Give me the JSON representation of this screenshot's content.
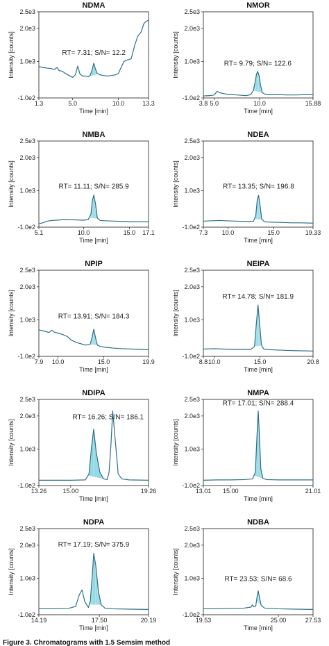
{
  "figure": {
    "caption": "Figure 3. Chromatograms with 1.5 Semsim method"
  },
  "style": {
    "trace_color": "#2e6f86",
    "fill_color": "#7fd0df",
    "axis_color": "#333333"
  },
  "chart_data": [
    {
      "type": "line",
      "title": "NDMA",
      "xlabel": "Time [min]",
      "ylabel": "Intensity [counts]",
      "xlim": [
        1.3,
        13.3
      ],
      "xticks": [
        "1.3",
        "5.0",
        "10.0",
        "13.3"
      ],
      "xtick_values": [
        1.3,
        5.0,
        10.0,
        13.3
      ],
      "ylim": [
        -100,
        2500
      ],
      "yticks": [
        "2.5e3",
        "2.0e3",
        "1.0e3",
        "-1.0e2"
      ],
      "ytick_values": [
        2500,
        2000,
        1000,
        -100
      ],
      "annotation": "RT= 7.31; S/N= 12.2",
      "annotation_x": 7.31,
      "annotation_y": 1200,
      "series": [
        {
          "x": [
            1.3,
            1.7,
            2.2,
            2.6,
            3.0,
            3.3,
            3.5,
            3.9,
            4.2,
            4.6,
            5.0,
            5.3,
            5.55,
            5.8,
            6.1,
            6.4,
            6.7,
            6.9,
            7.1,
            7.31,
            7.5,
            7.7,
            7.95,
            8.3,
            8.8,
            9.3,
            9.7,
            10.0,
            10.3,
            10.6,
            11.0,
            11.4,
            11.8,
            12.1,
            12.5,
            12.8,
            13.0,
            13.3
          ],
          "y": [
            850,
            820,
            800,
            790,
            760,
            820,
            730,
            700,
            640,
            580,
            520,
            600,
            860,
            620,
            560,
            560,
            540,
            580,
            720,
            950,
            760,
            640,
            600,
            580,
            560,
            580,
            600,
            640,
            820,
            1000,
            1050,
            1080,
            1500,
            1750,
            1900,
            2150,
            2200,
            2250
          ]
        }
      ],
      "peak_shade": [
        6.7,
        7.8
      ]
    },
    {
      "type": "line",
      "title": "NMOR",
      "xlabel": "Time [min]",
      "ylabel": "Intensity [counts]",
      "xlim": [
        3.8,
        15.88
      ],
      "xticks": [
        "3.8",
        "5.0",
        "10.0",
        "15.88"
      ],
      "xtick_values": [
        3.8,
        5.0,
        10.0,
        15.88
      ],
      "ylim": [
        -100,
        2500
      ],
      "yticks": [
        "2.5e3",
        "2.0e3",
        "1.0e3",
        "-1.0e2"
      ],
      "ytick_values": [
        2500,
        2000,
        1000,
        -100
      ],
      "annotation": "RT= 9.79; S/N= 122.6",
      "annotation_x": 9.79,
      "annotation_y": 880,
      "series": [
        {
          "x": [
            3.8,
            4.5,
            5.0,
            5.3,
            5.6,
            6.0,
            6.5,
            7.0,
            7.5,
            8.0,
            8.5,
            9.0,
            9.3,
            9.5,
            9.65,
            9.79,
            9.95,
            10.1,
            10.3,
            10.6,
            11.0,
            12.0,
            13.0,
            14.0,
            15.0,
            15.88
          ],
          "y": [
            -40,
            -30,
            -10,
            100,
            60,
            30,
            10,
            0,
            -10,
            -20,
            -30,
            0,
            120,
            380,
            620,
            700,
            560,
            280,
            60,
            10,
            0,
            0,
            -10,
            -10,
            0,
            0
          ]
        }
      ],
      "peak_shade": [
        9.3,
        10.3
      ]
    },
    {
      "type": "line",
      "title": "NMBA",
      "xlabel": "Time [min]",
      "ylabel": "Intensity [counts]",
      "xlim": [
        5.1,
        17.1
      ],
      "xticks": [
        "5.1",
        "10.0",
        "15.0",
        "17.1"
      ],
      "xtick_values": [
        5.1,
        10.0,
        15.0,
        17.1
      ],
      "ylim": [
        -100,
        2500
      ],
      "yticks": [
        "2.5e3",
        "2.0e3",
        "1.0e3",
        "-1.0e2"
      ],
      "ytick_values": [
        2500,
        2000,
        1000,
        -100
      ],
      "annotation": "RT= 11.11; S/N= 285.9",
      "annotation_x": 11.11,
      "annotation_y": 1060,
      "series": [
        {
          "x": [
            5.1,
            5.5,
            6.0,
            6.5,
            7.0,
            8.0,
            9.0,
            10.0,
            10.5,
            10.8,
            10.95,
            11.11,
            11.3,
            11.5,
            11.8,
            12.5,
            13.5,
            14.5,
            15.5,
            16.5,
            17.1
          ],
          "y": [
            0,
            30,
            80,
            100,
            110,
            130,
            120,
            110,
            130,
            300,
            700,
            870,
            600,
            180,
            100,
            90,
            80,
            70,
            60,
            60,
            60
          ]
        }
      ],
      "peak_shade": [
        10.6,
        11.6
      ]
    },
    {
      "type": "line",
      "title": "NDEA",
      "xlabel": "Time [min]",
      "ylabel": "Intensity [counts]",
      "xlim": [
        7.3,
        19.33
      ],
      "xticks": [
        "7.3",
        "10.0",
        "15.0",
        "19.33"
      ],
      "xtick_values": [
        7.3,
        10.0,
        15.0,
        19.33
      ],
      "ylim": [
        -100,
        2500
      ],
      "yticks": [
        "2.5e3",
        "2.0e3",
        "1.0e3",
        "-1.0e2"
      ],
      "ytick_values": [
        2500,
        2000,
        1000,
        -100
      ],
      "annotation": "RT= 13.35; S/N= 196.8",
      "annotation_x": 13.35,
      "annotation_y": 1060,
      "series": [
        {
          "x": [
            7.3,
            8.0,
            9.0,
            10.0,
            11.0,
            12.0,
            12.8,
            13.05,
            13.2,
            13.35,
            13.5,
            13.7,
            14.0,
            15.0,
            16.0,
            17.0,
            18.0,
            19.33
          ],
          "y": [
            80,
            90,
            100,
            90,
            80,
            70,
            80,
            250,
            700,
            860,
            600,
            150,
            60,
            50,
            40,
            30,
            30,
            20
          ]
        }
      ],
      "peak_shade": [
        12.9,
        13.8
      ]
    },
    {
      "type": "line",
      "title": "NPIP",
      "xlabel": "Time [min]",
      "ylabel": "Intensity [counts]",
      "xlim": [
        7.9,
        19.9
      ],
      "xticks": [
        "7.9",
        "10.0",
        "15.0",
        "19.9"
      ],
      "xtick_values": [
        7.9,
        10.0,
        15.0,
        19.9
      ],
      "ylim": [
        -100,
        2500
      ],
      "yticks": [
        "2.5e3",
        "2.0e3",
        "1.0e3",
        "-1.0e2"
      ],
      "ytick_values": [
        2500,
        2000,
        1000,
        -100
      ],
      "annotation": "RT= 13.91; S/N= 184.3",
      "annotation_x": 13.91,
      "annotation_y": 1040,
      "series": [
        {
          "x": [
            7.9,
            8.5,
            9.0,
            9.3,
            9.6,
            10.0,
            10.5,
            11.0,
            11.5,
            12.0,
            12.5,
            13.0,
            13.5,
            13.7,
            13.91,
            14.1,
            14.3,
            14.6,
            15.0,
            16.0,
            17.0,
            18.0,
            19.0,
            19.9
          ],
          "y": [
            700,
            660,
            620,
            690,
            630,
            600,
            560,
            500,
            380,
            320,
            280,
            240,
            260,
            450,
            720,
            460,
            240,
            200,
            180,
            150,
            130,
            120,
            110,
            100
          ]
        }
      ],
      "peak_shade": [
        13.5,
        14.3
      ]
    },
    {
      "type": "line",
      "title": "NEIPA",
      "xlabel": "Time [min]",
      "ylabel": "Intensity [counts]",
      "xlim": [
        8.8,
        20.8
      ],
      "xticks": [
        "8.8",
        "10.0",
        "15.0",
        "20.8"
      ],
      "xtick_values": [
        8.8,
        10.0,
        15.0,
        20.8
      ],
      "ylim": [
        -100,
        2500
      ],
      "yticks": [
        "2.5e3",
        "2.0e3",
        "1.0e3",
        "-1.0e2"
      ],
      "ytick_values": [
        2500,
        2000,
        1000,
        -100
      ],
      "annotation": "RT= 14.78; S/N= 181.9",
      "annotation_x": 14.78,
      "annotation_y": 1640,
      "series": [
        {
          "x": [
            8.8,
            10.0,
            11.0,
            12.0,
            13.0,
            14.0,
            14.4,
            14.6,
            14.78,
            14.95,
            15.15,
            15.4,
            16.0,
            17.0,
            18.0,
            19.0,
            20.8
          ],
          "y": [
            120,
            130,
            120,
            110,
            110,
            110,
            200,
            900,
            1450,
            900,
            250,
            120,
            100,
            90,
            80,
            70,
            60
          ]
        }
      ],
      "peak_shade": [
        14.4,
        15.2
      ]
    },
    {
      "type": "line",
      "title": "NDIPA",
      "xlabel": "Time [min]",
      "ylabel": "Intensity [counts]",
      "xlim": [
        13.26,
        19.26
      ],
      "xticks": [
        "13.26",
        "15.00",
        "19.26"
      ],
      "xtick_values": [
        13.26,
        15.0,
        19.26
      ],
      "ylim": [
        -100,
        2500
      ],
      "yticks": [
        "2.5e3",
        "2.0e3",
        "1.0e3",
        "-1.0e2"
      ],
      "ytick_values": [
        2500,
        2000,
        1000,
        -100
      ],
      "annotation": "RT= 16.26; S/N= 186.1",
      "annotation_x": 15.1,
      "annotation_y": 1900,
      "series": [
        {
          "x": [
            13.26,
            14.0,
            15.0,
            15.8,
            16.0,
            16.15,
            16.26,
            16.4,
            16.6,
            16.8,
            17.0,
            17.1,
            17.2,
            17.3,
            17.45,
            17.6,
            17.8,
            18.2,
            19.26
          ],
          "y": [
            60,
            60,
            60,
            70,
            250,
            1100,
            1600,
            900,
            300,
            100,
            80,
            300,
            1100,
            2150,
            1200,
            250,
            100,
            70,
            60
          ]
        }
      ],
      "peak_shade": [
        15.95,
        16.9
      ]
    },
    {
      "type": "line",
      "title": "NMPA",
      "xlabel": "Time [min]",
      "ylabel": "Intensity [counts]",
      "xlim": [
        13.01,
        21.01
      ],
      "xticks": [
        "13.01",
        "15.00",
        "21.01"
      ],
      "xtick_values": [
        13.01,
        15.0,
        21.01
      ],
      "ylim": [
        -100,
        2500
      ],
      "yticks": [
        "2.5e3",
        "2.0e3",
        "1.0e3",
        "-1.0e2"
      ],
      "ytick_values": [
        2500,
        2000,
        1000,
        -100
      ],
      "annotation": "RT= 17.01; S/N= 288.4",
      "annotation_x": 17.01,
      "annotation_y": 2320,
      "series": [
        {
          "x": [
            13.01,
            14.0,
            15.0,
            16.0,
            16.6,
            16.8,
            16.92,
            17.01,
            17.1,
            17.2,
            17.35,
            17.6,
            18.5,
            19.5,
            21.01
          ],
          "y": [
            60,
            70,
            70,
            80,
            100,
            300,
            1400,
            2150,
            1400,
            400,
            120,
            80,
            70,
            70,
            70
          ]
        }
      ],
      "peak_shade": [
        16.7,
        17.5
      ]
    },
    {
      "type": "line",
      "title": "NDPA",
      "xlabel": "Time [min]",
      "ylabel": "Intensity [counts]",
      "xlim": [
        14.19,
        20.19
      ],
      "xticks": [
        "14.19",
        "17.50",
        "20.19"
      ],
      "xtick_values": [
        14.19,
        17.5,
        20.19
      ],
      "ylim": [
        -100,
        2500
      ],
      "yticks": [
        "2.5e3",
        "2.0e3",
        "1.0e3",
        "-1.0e2"
      ],
      "ytick_values": [
        2500,
        2000,
        1000,
        -100
      ],
      "annotation": "RT= 17.19; S/N= 375.9",
      "annotation_x": 17.19,
      "annotation_y": 1950,
      "series": [
        {
          "x": [
            14.19,
            15.0,
            15.8,
            16.2,
            16.4,
            16.55,
            16.7,
            16.9,
            17.0,
            17.1,
            17.19,
            17.3,
            17.45,
            17.6,
            17.8,
            18.2,
            19.0,
            20.19
          ],
          "y": [
            80,
            80,
            90,
            150,
            500,
            650,
            300,
            120,
            300,
            1000,
            1750,
            1400,
            600,
            200,
            100,
            80,
            70,
            60
          ]
        }
      ],
      "peak_shade": [
        16.95,
        17.6
      ]
    },
    {
      "type": "line",
      "title": "NDBA",
      "xlabel": "Time [min]",
      "ylabel": "Intensity [counts]",
      "xlim": [
        19.53,
        27.53
      ],
      "xticks": [
        "19.53",
        "25.00",
        "27.53"
      ],
      "xtick_values": [
        19.53,
        25.0,
        27.53
      ],
      "ylim": [
        -100,
        2500
      ],
      "yticks": [
        "2.5e3",
        "2.0e3",
        "1.0e3",
        "-1.0e2"
      ],
      "ytick_values": [
        2500,
        2000,
        1000,
        -100
      ],
      "annotation": "RT= 23.53; S/N= 68.6",
      "annotation_x": 23.53,
      "annotation_y": 920,
      "series": [
        {
          "x": [
            19.53,
            20.5,
            21.5,
            22.5,
            23.0,
            23.1,
            23.2,
            23.35,
            23.45,
            23.53,
            23.62,
            23.75,
            24.0,
            25.0,
            26.0,
            27.53
          ],
          "y": [
            80,
            80,
            90,
            100,
            130,
            200,
            140,
            160,
            450,
            620,
            430,
            180,
            100,
            80,
            70,
            60
          ]
        }
      ],
      "peak_shade": [
        23.4,
        23.75
      ]
    }
  ]
}
